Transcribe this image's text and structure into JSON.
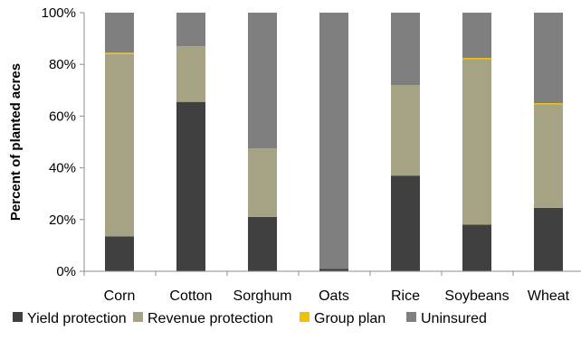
{
  "chart_data": {
    "type": "bar",
    "stacked": true,
    "title": "",
    "xlabel": "",
    "ylabel": "Percent of planted acres",
    "ylim": [
      0,
      100
    ],
    "y_ticks": [
      "0%",
      "20%",
      "40%",
      "60%",
      "80%",
      "100%"
    ],
    "grid": false,
    "legend_position": "bottom",
    "categories": [
      "Corn",
      "Cotton",
      "Sorghum",
      "Oats",
      "Rice",
      "Soybeans",
      "Wheat"
    ],
    "series": [
      {
        "name": "Yield protection",
        "color": "#404040",
        "values": [
          13.5,
          65.5,
          21,
          1,
          37,
          18,
          24.5
        ]
      },
      {
        "name": "Revenue protection",
        "color": "#a5a383",
        "values": [
          70.5,
          21.5,
          26.5,
          0,
          35,
          64,
          40
        ]
      },
      {
        "name": "Group plan",
        "color": "#f2c200",
        "values": [
          0.5,
          0,
          0,
          0,
          0,
          0.5,
          0.5
        ]
      },
      {
        "name": "Uninsured",
        "color": "#7f7f7f",
        "values": [
          15.5,
          13,
          52.5,
          99,
          28,
          17.5,
          35
        ]
      }
    ]
  }
}
